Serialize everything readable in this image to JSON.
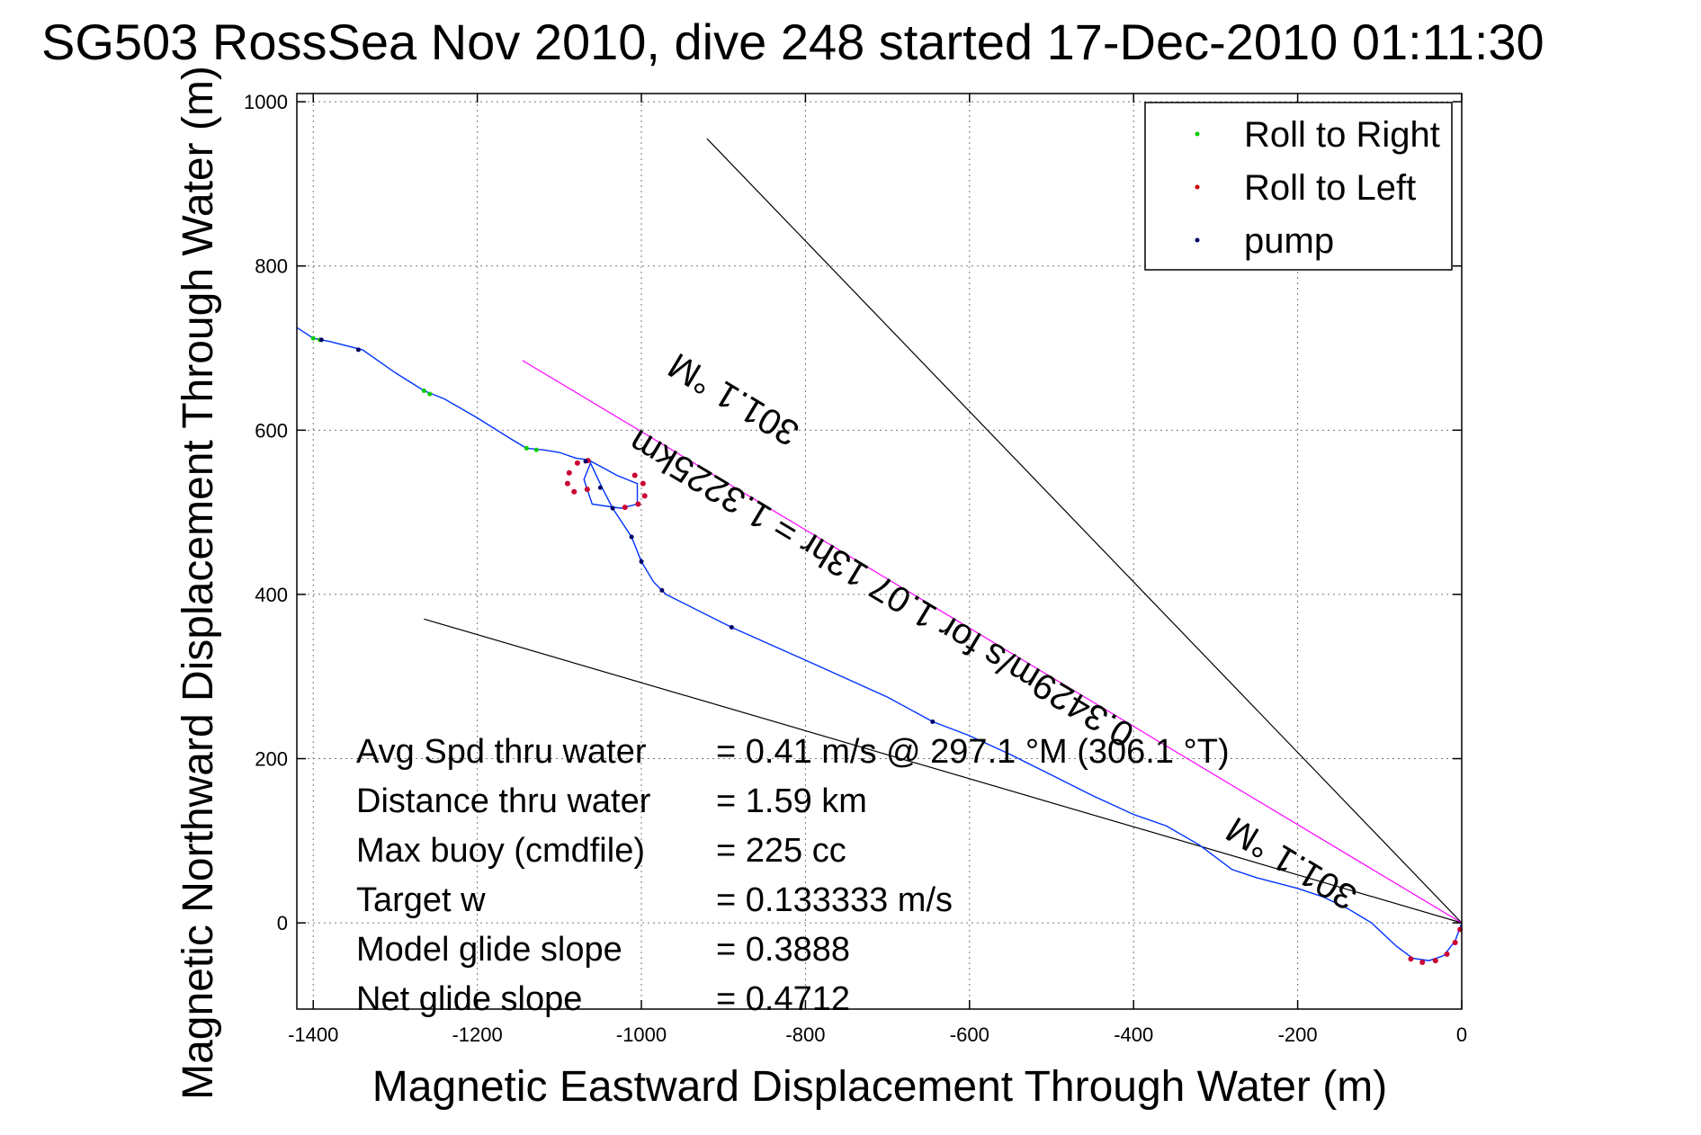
{
  "chart_data": {
    "type": "line",
    "title": "SG503 RossSea Nov 2010, dive 248 started 17-Dec-2010 01:11:30",
    "xlabel": "Magnetic Eastward Displacement Through Water (m)",
    "ylabel": "Magnetic Northward Displacement Through Water (m)",
    "xlim": [
      -1420,
      0
    ],
    "ylim": [
      -105,
      1010
    ],
    "xticks": [
      -1400,
      -1200,
      -1000,
      -800,
      -600,
      -400,
      -200,
      0
    ],
    "yticks": [
      0,
      200,
      400,
      600,
      800,
      1000
    ],
    "xticklabels": [
      "-1400",
      "-1200",
      "-1000",
      "-800",
      "-600",
      "-400",
      "-200",
      "0"
    ],
    "yticklabels": [
      "0",
      "200",
      "400",
      "600",
      "800",
      "1000"
    ],
    "grid": true,
    "legend_position": "top-right",
    "legend": [
      {
        "label": "Roll to Right",
        "color": "#00cc00"
      },
      {
        "label": "Roll to Left",
        "color": "#cc0000"
      },
      {
        "label": "pump",
        "color": "#000066"
      }
    ],
    "track": {
      "name": "glider track",
      "color": "#0033ff",
      "points": [
        [
          -1420,
          725
        ],
        [
          -1400,
          712
        ],
        [
          -1380,
          708
        ],
        [
          -1340,
          698
        ],
        [
          -1300,
          670
        ],
        [
          -1265,
          648
        ],
        [
          -1240,
          638
        ],
        [
          -1200,
          615
        ],
        [
          -1160,
          590
        ],
        [
          -1140,
          578
        ],
        [
          -1120,
          576
        ],
        [
          -1100,
          573
        ],
        [
          -1080,
          566
        ],
        [
          -1065,
          564
        ],
        [
          -1050,
          556
        ],
        [
          -1030,
          545
        ],
        [
          -1005,
          535
        ],
        [
          -1005,
          510
        ],
        [
          -1025,
          505
        ],
        [
          -1060,
          510
        ],
        [
          -1070,
          540
        ],
        [
          -1062,
          560
        ],
        [
          -1048,
          530
        ],
        [
          -1035,
          505
        ],
        [
          -1012,
          470
        ],
        [
          -1000,
          440
        ],
        [
          -985,
          415
        ],
        [
          -970,
          400
        ],
        [
          -890,
          360
        ],
        [
          -800,
          320
        ],
        [
          -700,
          275
        ],
        [
          -645,
          245
        ],
        [
          -600,
          228
        ],
        [
          -550,
          205
        ],
        [
          -500,
          180
        ],
        [
          -450,
          155
        ],
        [
          -400,
          132
        ],
        [
          -360,
          118
        ],
        [
          -320,
          95
        ],
        [
          -300,
          80
        ],
        [
          -280,
          65
        ],
        [
          -250,
          55
        ],
        [
          -200,
          42
        ],
        [
          -170,
          32
        ],
        [
          -140,
          18
        ],
        [
          -110,
          0
        ],
        [
          -80,
          -28
        ],
        [
          -60,
          -43
        ],
        [
          -40,
          -46
        ],
        [
          -22,
          -40
        ],
        [
          -8,
          -22
        ],
        [
          0,
          0
        ]
      ]
    },
    "roll_right_points": [
      [
        -1400,
        712
      ],
      [
        -1392,
        710
      ],
      [
        -1265,
        648
      ],
      [
        -1258,
        644
      ],
      [
        -1140,
        578
      ],
      [
        -1128,
        576
      ]
    ],
    "roll_left_points": [
      [
        -1065,
        563
      ],
      [
        -1078,
        560
      ],
      [
        -1088,
        548
      ],
      [
        -1090,
        535
      ],
      [
        -1082,
        525
      ],
      [
        -1066,
        528
      ],
      [
        -1008,
        545
      ],
      [
        -998,
        535
      ],
      [
        -996,
        520
      ],
      [
        -1004,
        510
      ],
      [
        -1020,
        506
      ],
      [
        -62,
        -44
      ],
      [
        -48,
        -48
      ],
      [
        -32,
        -46
      ],
      [
        -18,
        -38
      ],
      [
        -8,
        -24
      ],
      [
        -2,
        -8
      ]
    ],
    "pump_points": [
      [
        -1390,
        710
      ],
      [
        -1345,
        698
      ],
      [
        -1068,
        562
      ],
      [
        -1050,
        530
      ],
      [
        -1035,
        505
      ],
      [
        -1012,
        470
      ],
      [
        -1000,
        440
      ],
      [
        -975,
        405
      ],
      [
        -890,
        360
      ],
      [
        -645,
        245
      ]
    ],
    "reference_lines": [
      {
        "name": "upper-bound-line",
        "color": "#000000",
        "x": [
          -920,
          0
        ],
        "y": [
          955,
          0
        ]
      },
      {
        "name": "lower-bound-line",
        "color": "#000000",
        "x": [
          -1265,
          0
        ],
        "y": [
          370,
          0
        ]
      },
      {
        "name": "heading-line",
        "color": "#ff00ff",
        "x": [
          -1145,
          0
        ],
        "y": [
          685,
          0
        ]
      }
    ],
    "annotations": [
      {
        "text": "301.1 °M",
        "x": -880,
        "y": 650,
        "rotation": 31
      },
      {
        "text": "0.3429m/s for 1.07 13hr = 1.3225km",
        "x": -700,
        "y": 420,
        "rotation": 31
      },
      {
        "text": "301.1 °M",
        "x": -200,
        "y": 85,
        "rotation": 31
      }
    ],
    "stats": [
      {
        "label": "Avg Spd thru water",
        "value": "=  0.41 m/s @ 297.1 °M (306.1 °T)"
      },
      {
        "label": "Distance thru water",
        "value": "=  1.59 km"
      },
      {
        "label": "Max buoy (cmdfile)",
        "value": "= 225 cc"
      },
      {
        "label": "Target w",
        "value": "= 0.133333 m/s"
      },
      {
        "label": "Model glide slope",
        "value": "= 0.3888"
      },
      {
        "label": "Net glide slope",
        "value": "= 0.4712"
      }
    ]
  }
}
